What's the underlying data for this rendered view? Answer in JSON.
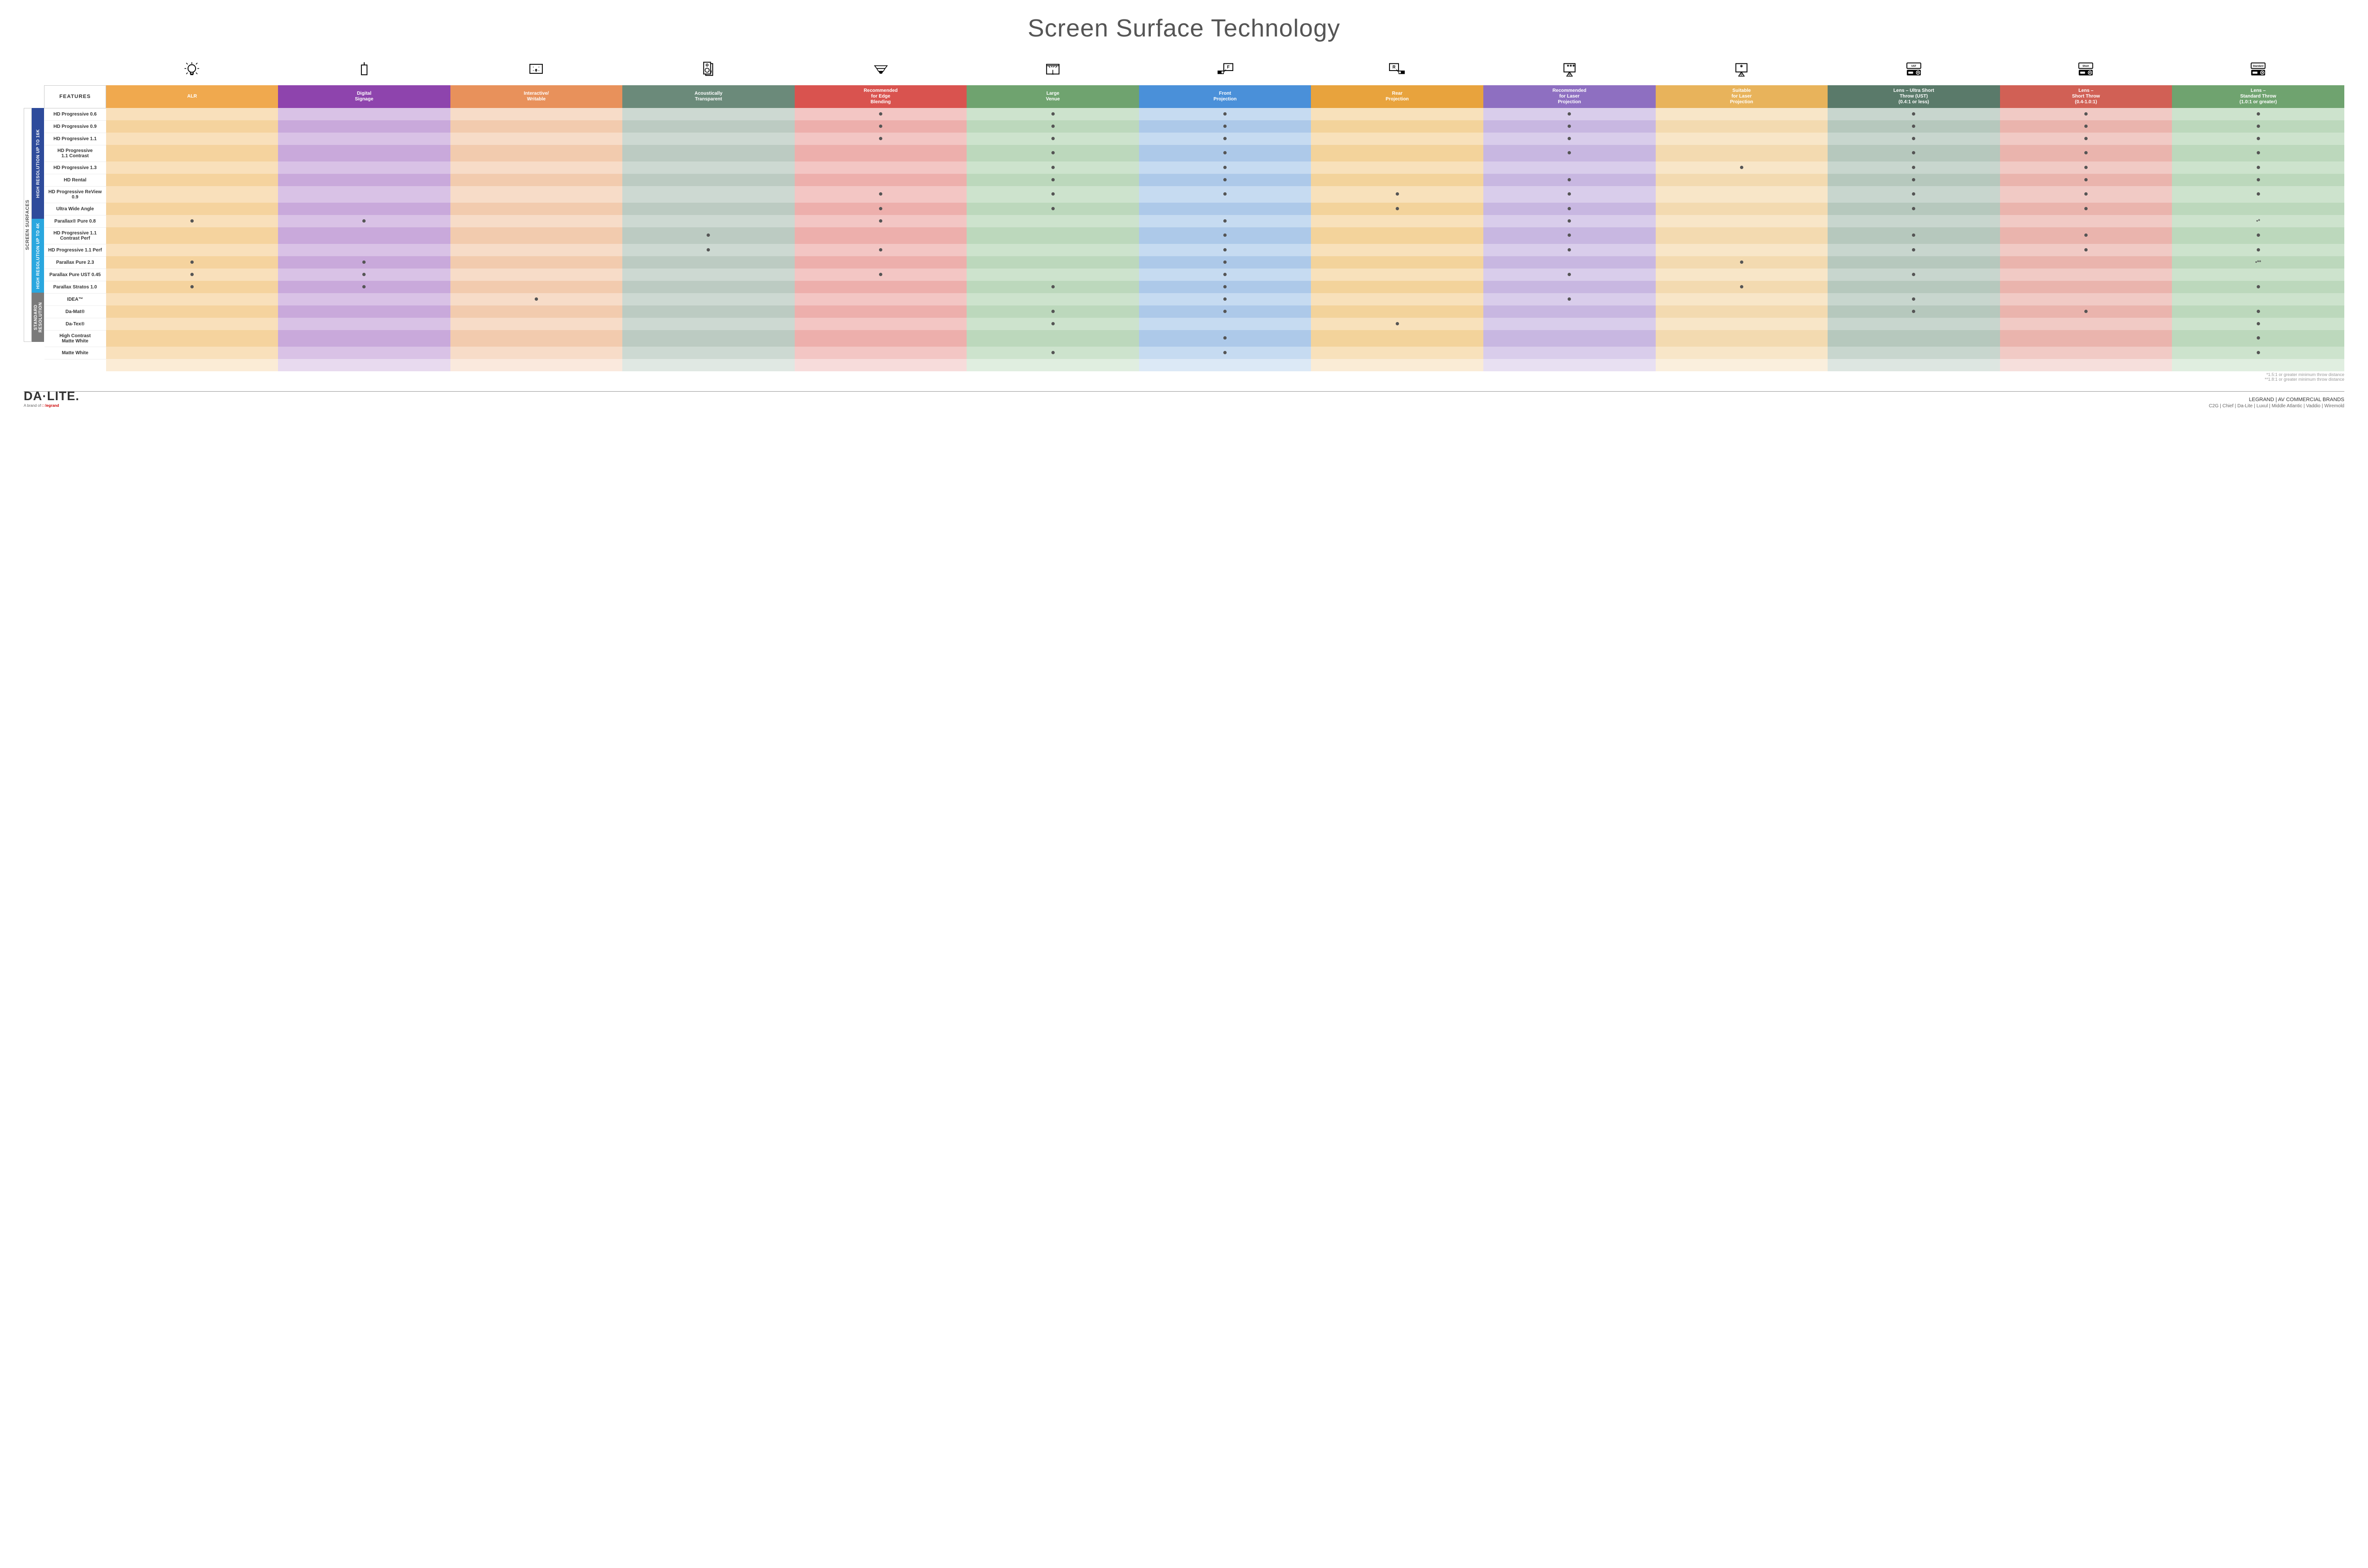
{
  "title": "Screen Surface Technology",
  "side_label": "SCREEN SURFACES",
  "features_header": "FEATURES",
  "columns": [
    {
      "key": "alr",
      "label": "ALR",
      "color": "#f0a94e",
      "tint": "#f9e0bb",
      "alt": "#f5d39e",
      "icon": "bulb"
    },
    {
      "key": "signage",
      "label": "Digital\nSignage",
      "color": "#8e44ad",
      "tint": "#d9c2e6",
      "alt": "#c9a9db",
      "icon": "signage"
    },
    {
      "key": "interactive",
      "label": "Interactive/\nWritable",
      "color": "#e8915b",
      "tint": "#f7dcc8",
      "alt": "#f2cbae",
      "icon": "touch"
    },
    {
      "key": "acoustic",
      "label": "Acoustically\nTransparent",
      "color": "#6b8a7a",
      "tint": "#cdd9d2",
      "alt": "#bccbc2",
      "icon": "speaker"
    },
    {
      "key": "edge",
      "label": "Recommended\nfor Edge\nBlending",
      "color": "#d9534f",
      "tint": "#f3c6c4",
      "alt": "#edafac",
      "icon": "blend"
    },
    {
      "key": "venue",
      "label": "Large\nVenue",
      "color": "#6fa36f",
      "tint": "#cde3cd",
      "alt": "#bcd8bc",
      "icon": "stage"
    },
    {
      "key": "front",
      "label": "Front\nProjection",
      "color": "#4a90d9",
      "tint": "#c6dbf1",
      "alt": "#adc9e9",
      "icon": "front"
    },
    {
      "key": "rear",
      "label": "Rear\nProjection",
      "color": "#e8a33d",
      "tint": "#f8e1bb",
      "alt": "#f3d39b",
      "icon": "rear"
    },
    {
      "key": "rec_laser",
      "label": "Recommended\nfor Laser\nProjection",
      "color": "#8e6fc1",
      "tint": "#d9cdeb",
      "alt": "#c8b7e1",
      "icon": "laser3"
    },
    {
      "key": "suit_laser",
      "label": "Suitable\nfor Laser\nProjection",
      "color": "#e8b35b",
      "tint": "#f8e6c8",
      "alt": "#f3dab0",
      "icon": "laser1"
    },
    {
      "key": "ust",
      "label": "Lens – Ultra Short\nThrow (UST)\n(0.4:1 or less)",
      "color": "#5a7a6a",
      "tint": "#c8d6ce",
      "alt": "#b6c8bd",
      "icon": "proj",
      "proj_label": "UST"
    },
    {
      "key": "short",
      "label": "Lens –\nShort Throw\n(0.4-1.0:1)",
      "color": "#d16055",
      "tint": "#f1cac5",
      "alt": "#eab4ad",
      "icon": "proj",
      "proj_label": "Short"
    },
    {
      "key": "std",
      "label": "Lens –\nStandard Throw\n(1.0:1 or greater)",
      "color": "#6fa36f",
      "tint": "#cde3cd",
      "alt": "#bcd8bc",
      "icon": "proj",
      "proj_label": "Standard"
    }
  ],
  "groups": [
    {
      "label": "HIGH RESOLUTION UP TO 16K",
      "color": "#2e4b9b",
      "rows": [
        {
          "name": "HD Progressive 0.6",
          "dots": [
            "edge",
            "venue",
            "front",
            "rec_laser",
            "ust",
            "short",
            "std"
          ]
        },
        {
          "name": "HD Progressive 0.9",
          "dots": [
            "edge",
            "venue",
            "front",
            "rec_laser",
            "ust",
            "short",
            "std"
          ]
        },
        {
          "name": "HD Progressive 1.1",
          "dots": [
            "edge",
            "venue",
            "front",
            "rec_laser",
            "ust",
            "short",
            "std"
          ]
        },
        {
          "name": "HD Progressive\n1.1 Contrast",
          "dots": [
            "venue",
            "front",
            "rec_laser",
            "ust",
            "short",
            "std"
          ]
        },
        {
          "name": "HD Progressive 1.3",
          "dots": [
            "venue",
            "front",
            "suit_laser",
            "ust",
            "short",
            "std"
          ]
        },
        {
          "name": "HD Rental",
          "dots": [
            "venue",
            "front",
            "rec_laser",
            "ust",
            "short",
            "std"
          ]
        },
        {
          "name": "HD Progressive ReView 0.9",
          "dots": [
            "edge",
            "venue",
            "front",
            "rear",
            "rec_laser",
            "ust",
            "short",
            "std"
          ]
        },
        {
          "name": "Ultra Wide Angle",
          "dots": [
            "edge",
            "venue",
            "rear",
            "rec_laser",
            "ust",
            "short"
          ]
        },
        {
          "name": "Parallax® Pure 0.8",
          "dots": [
            "alr",
            "signage",
            "edge",
            "front",
            "rec_laser"
          ],
          "std_note": "•*"
        }
      ]
    },
    {
      "label": "HIGH RESOLUTION UP TO 4K",
      "color": "#2aa7df",
      "rows": [
        {
          "name": "HD Progressive 1.1\nContrast Perf",
          "dots": [
            "acoustic",
            "front",
            "rec_laser",
            "ust",
            "short",
            "std"
          ]
        },
        {
          "name": "HD Progressive 1.1 Perf",
          "dots": [
            "acoustic",
            "edge",
            "front",
            "rec_laser",
            "ust",
            "short",
            "std"
          ]
        },
        {
          "name": "Parallax Pure 2.3",
          "dots": [
            "alr",
            "signage",
            "front",
            "suit_laser"
          ],
          "std_note": "•**"
        },
        {
          "name": "Parallax Pure UST 0.45",
          "dots": [
            "alr",
            "signage",
            "edge",
            "front",
            "rec_laser",
            "ust"
          ]
        },
        {
          "name": "Parallax Stratos 1.0",
          "dots": [
            "alr",
            "signage",
            "venue",
            "front",
            "suit_laser",
            "std"
          ]
        },
        {
          "name": "IDEA™",
          "dots": [
            "interactive",
            "front",
            "rec_laser",
            "ust"
          ]
        }
      ]
    },
    {
      "label": "STANDARD\nRESOLUTION",
      "color": "#7a7a7a",
      "rows": [
        {
          "name": "Da-Mat®",
          "dots": [
            "venue",
            "front",
            "ust",
            "short",
            "std"
          ]
        },
        {
          "name": "Da-Tex®",
          "dots": [
            "venue",
            "rear",
            "std"
          ]
        },
        {
          "name": "High Contrast\nMatte White",
          "dots": [
            "front",
            "std"
          ]
        },
        {
          "name": "Matte White",
          "dots": [
            "venue",
            "front",
            "std"
          ]
        }
      ]
    }
  ],
  "footnotes": [
    "*1.5:1 or greater minimum throw distance",
    "**1.8:1 or greater minimum throw distance"
  ],
  "footer": {
    "logo": "DA·LITE.",
    "logo_sub_prefix": "A brand of ",
    "logo_sub_brand": "legrand",
    "right_title": "LEGRAND | AV COMMERCIAL BRANDS",
    "brands": "C2G  |  Chief  |  Da-Lite  |  Luxul  |  Middle Atlantic  |  Vaddio  |  Wiremold"
  }
}
